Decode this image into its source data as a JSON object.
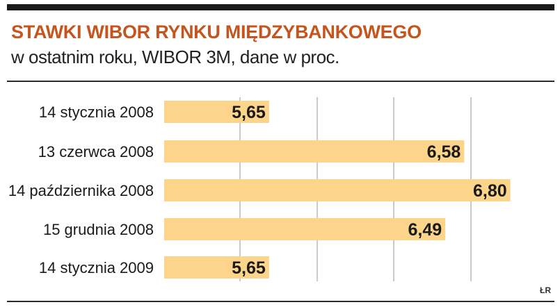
{
  "header": {
    "title": "STAWKI WIBOR RYNKU MIĘDZYBANKOWEGO",
    "subtitle": "w ostatnim roku, WIBOR 3M, dane w proc."
  },
  "credit": "ŁR",
  "colors": {
    "title": "#c6541d",
    "bar": "#fcd58b",
    "grid": "#b9b9b9",
    "rule": "#1a1a1a"
  },
  "chart_data": {
    "type": "bar",
    "orientation": "horizontal",
    "categories": [
      "14 stycznia 2008",
      "13 czerwca 2008",
      "14 października 2008",
      "15 grudnia 2008",
      "14 stycznia 2009"
    ],
    "values": [
      5.65,
      6.58,
      6.8,
      6.49,
      5.65
    ],
    "value_labels": [
      "5,65",
      "6,58",
      "6,80",
      "6,49",
      "5,65"
    ],
    "title": "STAWKI WIBOR RYNKU MIĘDZYBANKOWEGO",
    "xlim": [
      5.15,
      6.98
    ],
    "grid": true,
    "legend": "none"
  }
}
